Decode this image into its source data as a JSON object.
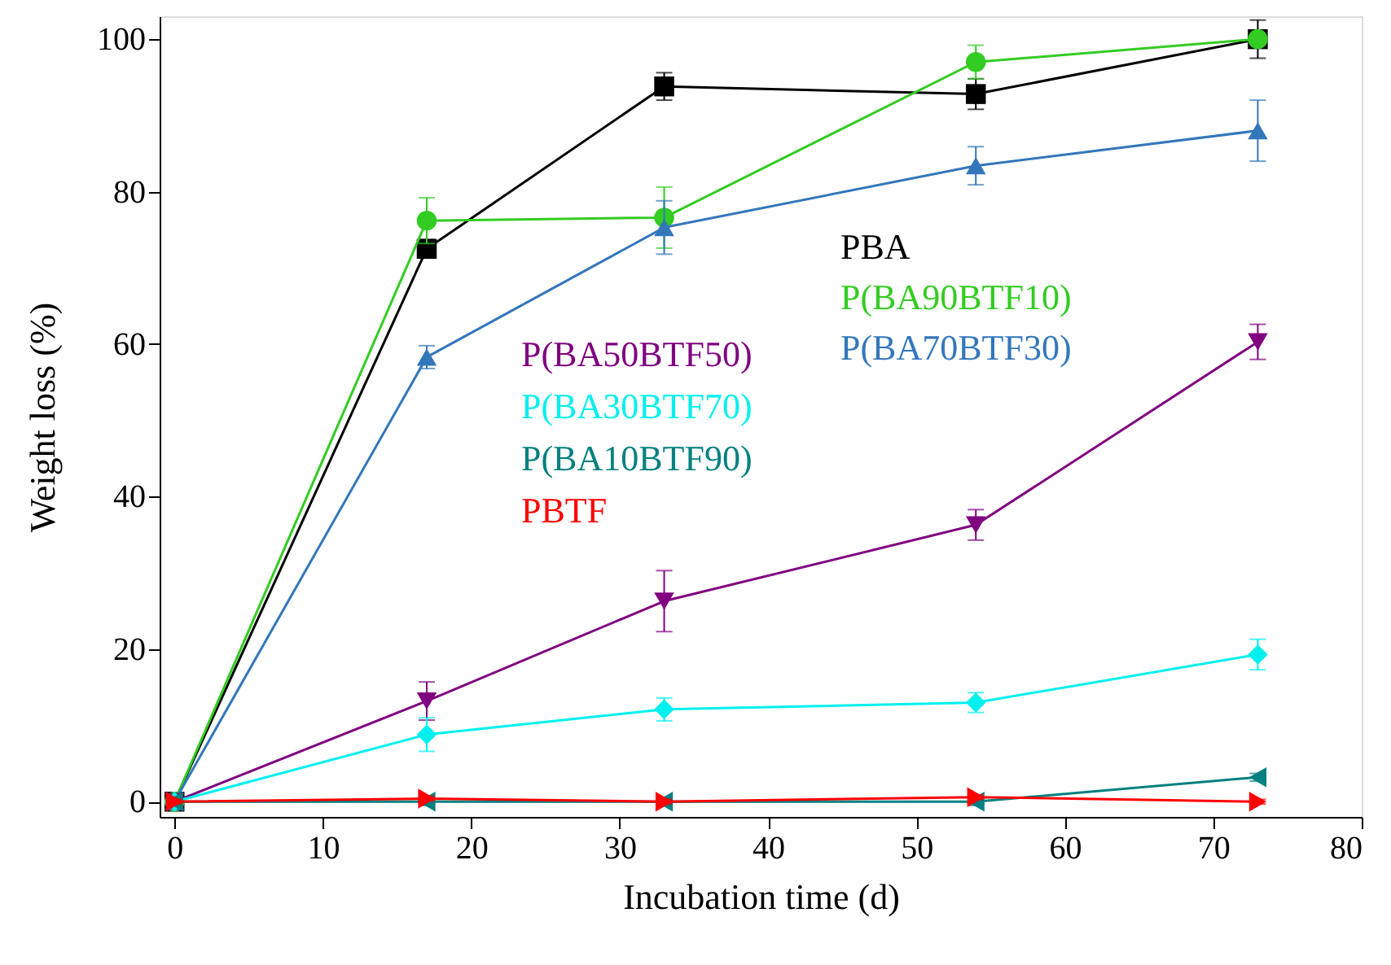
{
  "chart_data": {
    "type": "line",
    "xlabel": "Incubation time (d)",
    "ylabel": "Weight loss (%)",
    "x": [
      0,
      17,
      33,
      54,
      73
    ],
    "xlim": [
      -1,
      80
    ],
    "xticks": [
      0,
      10,
      20,
      30,
      40,
      50,
      60,
      70,
      80
    ],
    "ylim": [
      -2,
      103
    ],
    "yticks": [
      0,
      20,
      40,
      60,
      80,
      100
    ],
    "grid": false,
    "legend": "center",
    "line_style": "solid",
    "series": [
      {
        "name": "PBA",
        "color": "#000000",
        "marker": "square",
        "values": [
          0,
          72.5,
          93.8,
          92.8,
          100
        ],
        "errors": [
          0.5,
          1.2,
          1.8,
          2,
          2.5
        ]
      },
      {
        "name": "P(BA90BTF10)",
        "color": "#33cc22",
        "marker": "circle",
        "values": [
          0,
          76.2,
          76.6,
          97,
          100
        ],
        "errors": [
          0.5,
          3,
          4,
          2.2,
          0.5
        ]
      },
      {
        "name": "P(BA70BTF30)",
        "color": "#3377bb",
        "marker": "triangle-up",
        "values": [
          0,
          58.3,
          75.3,
          83.4,
          88
        ],
        "errors": [
          0.5,
          1.5,
          3.5,
          2.5,
          4
        ]
      },
      {
        "name": "P(BA50BTF50)",
        "color": "#800080",
        "marker": "triangle-down",
        "values": [
          0,
          13.2,
          26.3,
          36.3,
          60.3
        ],
        "errors": [
          0.5,
          2.5,
          4,
          2,
          2.3
        ]
      },
      {
        "name": "P(BA30BTF70)",
        "color": "#00f0f0",
        "marker": "diamond",
        "values": [
          0,
          8.8,
          12.1,
          13,
          19.3
        ],
        "errors": [
          0.5,
          2.2,
          1.5,
          1.3,
          2
        ]
      },
      {
        "name": "P(BA10BTF90)",
        "color": "#008080",
        "marker": "triangle-left",
        "values": [
          0,
          0,
          0,
          0,
          3.2
        ],
        "errors": [
          0.5,
          0.5,
          0.5,
          0.5,
          0.5
        ]
      },
      {
        "name": "PBTF",
        "color": "#ff0000",
        "marker": "triangle-right",
        "values": [
          0,
          0.4,
          0,
          0.6,
          0
        ],
        "errors": [
          0.3,
          0.3,
          0.3,
          0.3,
          0.3
        ]
      }
    ]
  }
}
